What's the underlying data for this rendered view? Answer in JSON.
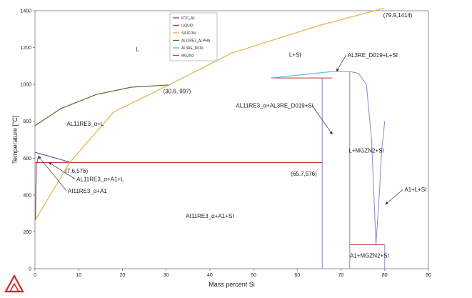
{
  "chart_data": {
    "type": "line",
    "xlabel": "Mass percent Si",
    "ylabel": "Temperature [°C]",
    "xlim": [
      0,
      90
    ],
    "ylim": [
      0,
      1400
    ],
    "xticks": [
      0,
      10,
      20,
      30,
      40,
      50,
      60,
      70,
      80,
      90
    ],
    "yticks": [
      0,
      200,
      400,
      600,
      800,
      1000,
      1200,
      1400
    ],
    "grid": false,
    "legend_position": "top-center",
    "series": [
      {
        "name": "FCC_A1",
        "color": "#5a5aa0",
        "points": [
          [
            0,
            632
          ],
          [
            8,
            578
          ]
        ]
      },
      {
        "name": "LIQUID",
        "color": "#c0392b",
        "points": [
          [
            0,
            576
          ],
          [
            65.7,
            576
          ]
        ]
      },
      {
        "name": "SILICON",
        "color": "#e8b04a",
        "points": [
          [
            0,
            262
          ],
          [
            8,
            578
          ],
          [
            18,
            850
          ],
          [
            30.6,
            997
          ],
          [
            45,
            1170
          ],
          [
            65,
            1320
          ],
          [
            79.9,
            1414
          ]
        ]
      },
      {
        "name": "AL11RE3_ALPHA",
        "color": "#556b2f",
        "points": [
          [
            0,
            776
          ],
          [
            6,
            870
          ],
          [
            14,
            945
          ],
          [
            22,
            985
          ],
          [
            30.6,
            997
          ]
        ]
      },
      {
        "name": "AL3RE_D019",
        "color": "#5bc0de",
        "points": [
          [
            54,
            1035
          ],
          [
            68,
            1070
          ]
        ]
      },
      {
        "name": "MGZN2",
        "color": "#8b5a5a",
        "points": [
          [
            0.1,
            265
          ],
          [
            0.3,
            560
          ],
          [
            0.8,
            610
          ]
        ]
      }
    ],
    "lines": [
      {
        "color": "#c0392b",
        "points": [
          [
            54,
            1035
          ],
          [
            68,
            1035
          ]
        ]
      },
      {
        "color": "#c0392b",
        "points": [
          [
            72,
            130
          ],
          [
            80,
            130
          ]
        ]
      },
      {
        "color": "#8b86c0",
        "points": [
          [
            65.7,
            0
          ],
          [
            65.7,
            1035
          ]
        ]
      },
      {
        "color": "#8b86c0",
        "points": [
          [
            72,
            0
          ],
          [
            72,
            1070
          ]
        ]
      },
      {
        "color": "#8b86c0",
        "points": [
          [
            80,
            0
          ],
          [
            80,
            130
          ]
        ]
      },
      {
        "color": "#8b86c0",
        "points": [
          [
            68,
            1070
          ],
          [
            72,
            1070
          ],
          [
            74,
            1060
          ],
          [
            75.8,
            1000
          ],
          [
            77,
            700
          ],
          [
            78,
            130
          ]
        ]
      },
      {
        "color": "#8b86c0",
        "points": [
          [
            78,
            130
          ],
          [
            78.8,
            420
          ],
          [
            79.3,
            640
          ],
          [
            80,
            800
          ]
        ]
      }
    ],
    "annotations": [
      {
        "text": "L",
        "x": 23.5,
        "y": 1180
      },
      {
        "text": "L+SI",
        "x": 59.5,
        "y": 1150
      },
      {
        "text": "AL3RE_D019+L+SI",
        "x": 71.5,
        "y": 1148,
        "arrow_to": [
          69,
          1072
        ]
      },
      {
        "text": "(79.9,1414)",
        "x": 83,
        "y": 1365
      },
      {
        "text": "(30.6, 997)",
        "x": 32.5,
        "y": 952
      },
      {
        "text": "AL11RE3_α+AL3RE_D019+SI",
        "x": 63.7,
        "y": 875,
        "arrow_to": [
          68,
          730
        ]
      },
      {
        "text": "AL11RE3_α+L",
        "x": 11.5,
        "y": 775
      },
      {
        "text": "L+MGZN2+SI",
        "x": 75.8,
        "y": 630
      },
      {
        "text": "(7.6,576)",
        "x": 9.5,
        "y": 520
      },
      {
        "text": "(65.7,576)",
        "x": 61.5,
        "y": 505
      },
      {
        "text": "AL11RE3_α+A1+L",
        "x": 9.5,
        "y": 475,
        "arrow_to": [
          3.2,
          576
        ]
      },
      {
        "text": "AI11RE3_α+A1",
        "x": 7.5,
        "y": 412,
        "arrow_to": [
          0.8,
          610
        ]
      },
      {
        "text": "A1+L+SI",
        "x": 84.5,
        "y": 418,
        "arrow_to": [
          80.2,
          350
        ]
      },
      {
        "text": "AI11RE3_α+A1+SI",
        "x": 40,
        "y": 275
      },
      {
        "text": "A1+MGZN2+SI",
        "x": 76.5,
        "y": 60
      }
    ]
  }
}
